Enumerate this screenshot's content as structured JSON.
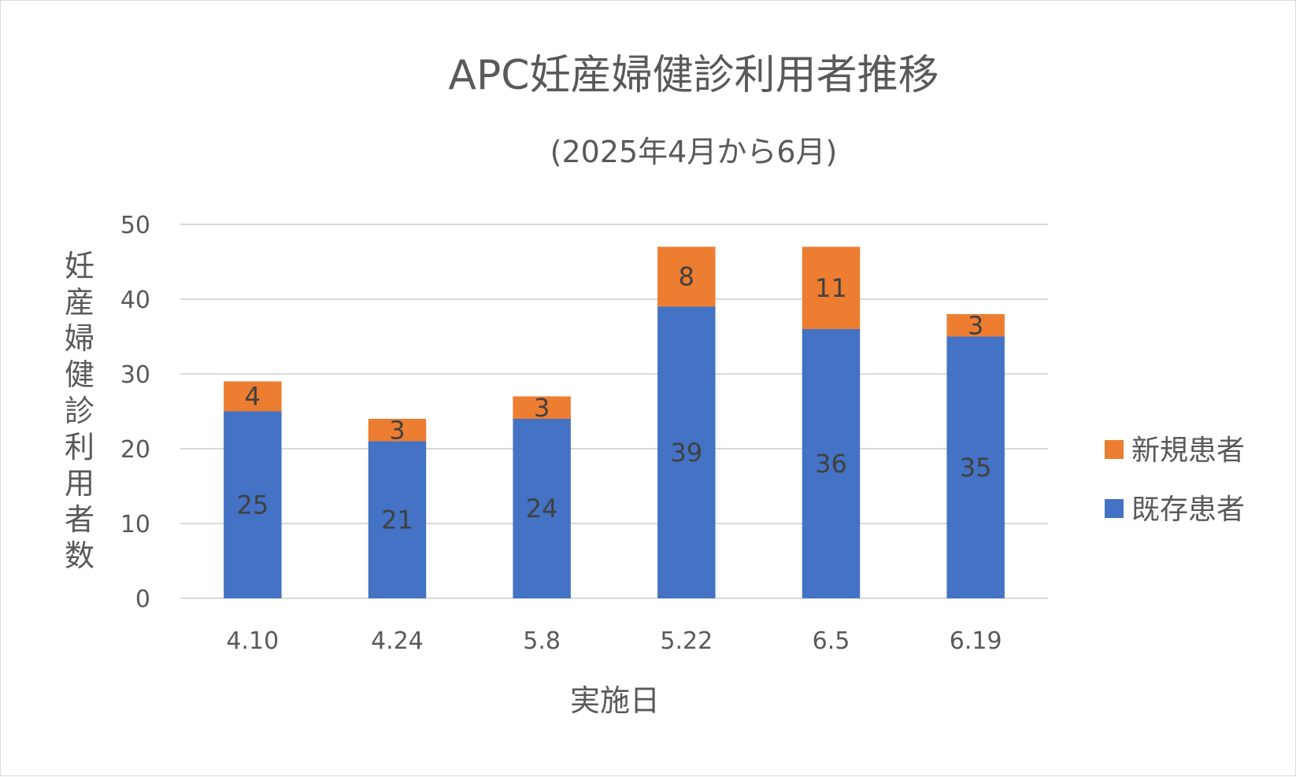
{
  "chart_data": {
    "type": "bar",
    "stacked": true,
    "title": "APC妊産婦健診利用者推移",
    "subtitle": "(2025年4月から6月)",
    "xlabel": "実施日",
    "ylabel": "妊産婦健診利用者数",
    "categories": [
      "4.10",
      "4.24",
      "5.8",
      "5.22",
      "6.5",
      "6.19"
    ],
    "series": [
      {
        "name": "既存患者",
        "color": "#4472C4",
        "values": [
          25,
          21,
          24,
          39,
          36,
          35
        ]
      },
      {
        "name": "新規患者",
        "color": "#ED7D31",
        "values": [
          4,
          3,
          3,
          8,
          11,
          3
        ]
      }
    ],
    "ylim": [
      0,
      50
    ],
    "yticks": [
      0,
      10,
      20,
      30,
      40,
      50
    ],
    "grid": true,
    "legend_position": "right",
    "legend_order": [
      "新規患者",
      "既存患者"
    ],
    "data_labels": true
  }
}
